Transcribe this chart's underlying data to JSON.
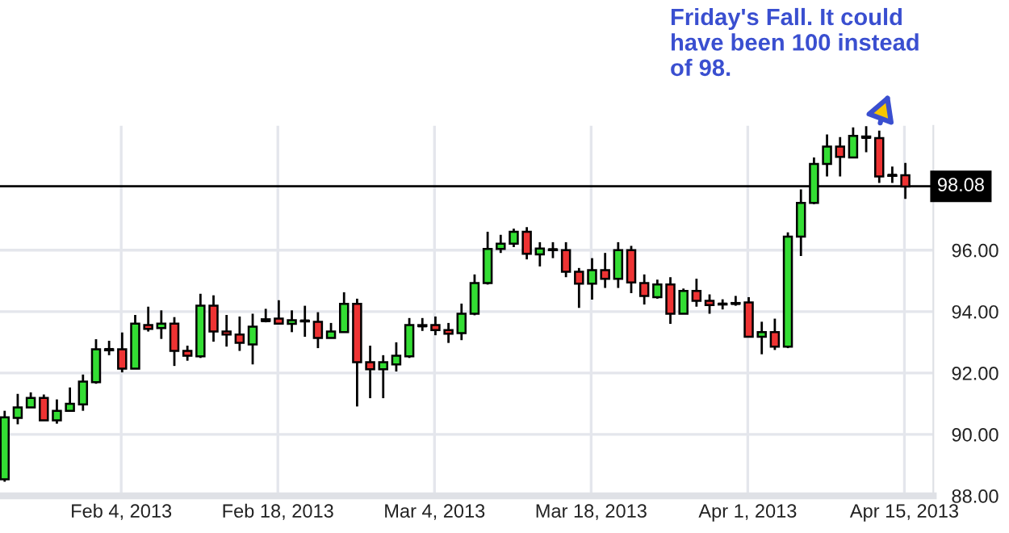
{
  "chart_data": {
    "type": "candlestick",
    "x": [
      "2013-01-24T14:00",
      "2013-01-25T18:00",
      "2013-01-26T22:00",
      "2013-01-28T02:00",
      "2013-01-29T06:00",
      "2013-01-30T10:00",
      "2013-01-31T14:00",
      "2013-02-01T18:00",
      "2013-02-02T22:00",
      "2013-02-04T02:00",
      "2013-02-05T06:00",
      "2013-02-06T10:00",
      "2013-02-07T14:00",
      "2013-02-08T18:00",
      "2013-02-09T22:00",
      "2013-02-11T02:00",
      "2013-02-12T06:00",
      "2013-02-13T10:00",
      "2013-02-14T14:00",
      "2013-02-15T18:00",
      "2013-02-16T22:00",
      "2013-02-18T02:00",
      "2013-02-19T06:00",
      "2013-02-20T10:00",
      "2013-02-21T14:00",
      "2013-02-22T18:00",
      "2013-02-23T22:00",
      "2013-02-25T02:00",
      "2013-02-26T06:00",
      "2013-02-27T10:00",
      "2013-02-28T14:00",
      "2013-03-01T18:00",
      "2013-03-02T22:00",
      "2013-03-04T02:00",
      "2013-03-05T06:00",
      "2013-03-06T10:00",
      "2013-03-07T14:00",
      "2013-03-08T18:00",
      "2013-03-09T22:00",
      "2013-03-11T02:00",
      "2013-03-12T06:00",
      "2013-03-13T10:00",
      "2013-03-14T14:00",
      "2013-03-15T18:00",
      "2013-03-16T22:00",
      "2013-03-18T02:00",
      "2013-03-19T06:00",
      "2013-03-20T10:00",
      "2013-03-21T14:00",
      "2013-03-22T18:00",
      "2013-03-23T22:00",
      "2013-03-25T02:00",
      "2013-03-26T06:00",
      "2013-03-27T10:00",
      "2013-03-28T14:00",
      "2013-03-29T18:00",
      "2013-03-30T22:00",
      "2013-04-01T02:00",
      "2013-04-02T06:00",
      "2013-04-03T10:00",
      "2013-04-04T14:00",
      "2013-04-05T18:00",
      "2013-04-06T22:00",
      "2013-04-08T02:00",
      "2013-04-09T06:00",
      "2013-04-10T10:00",
      "2013-04-11T14:00",
      "2013-04-12T18:00",
      "2013-04-13T22:00",
      "2013-04-15T02:00"
    ],
    "ohlc": [
      [
        88.54,
        90.77,
        88.46,
        90.56
      ],
      [
        90.54,
        91.32,
        90.33,
        90.88
      ],
      [
        90.88,
        91.37,
        90.88,
        91.19
      ],
      [
        91.19,
        91.3,
        90.46,
        90.46
      ],
      [
        90.46,
        91.14,
        90.35,
        90.77
      ],
      [
        90.77,
        91.53,
        90.77,
        91.0
      ],
      [
        90.98,
        91.95,
        90.77,
        91.72
      ],
      [
        91.7,
        93.1,
        91.65,
        92.77
      ],
      [
        92.77,
        93.05,
        92.58,
        92.74
      ],
      [
        92.77,
        93.32,
        92.02,
        92.14
      ],
      [
        92.14,
        93.89,
        92.14,
        93.61
      ],
      [
        93.56,
        94.16,
        93.35,
        93.44
      ],
      [
        93.46,
        94.04,
        93.11,
        93.61
      ],
      [
        93.61,
        93.82,
        92.23,
        92.72
      ],
      [
        92.72,
        92.89,
        92.4,
        92.56
      ],
      [
        92.54,
        94.58,
        92.49,
        94.19
      ],
      [
        94.19,
        94.53,
        93.02,
        93.35
      ],
      [
        93.35,
        93.89,
        92.86,
        93.25
      ],
      [
        93.25,
        93.84,
        92.72,
        92.98
      ],
      [
        92.93,
        93.93,
        92.28,
        93.51
      ],
      [
        93.7,
        94.09,
        93.65,
        93.75
      ],
      [
        93.77,
        94.37,
        93.6,
        93.61
      ],
      [
        93.6,
        94.04,
        93.33,
        93.72
      ],
      [
        93.7,
        94.19,
        93.18,
        93.68
      ],
      [
        93.67,
        93.98,
        92.81,
        93.14
      ],
      [
        93.14,
        93.63,
        93.14,
        93.35
      ],
      [
        93.33,
        94.63,
        93.33,
        94.25
      ],
      [
        94.25,
        94.42,
        90.91,
        92.35
      ],
      [
        92.35,
        92.89,
        91.18,
        92.12
      ],
      [
        92.12,
        92.58,
        91.18,
        92.35
      ],
      [
        92.28,
        93.0,
        92.05,
        92.56
      ],
      [
        92.54,
        93.79,
        92.49,
        93.56
      ],
      [
        93.53,
        93.79,
        93.37,
        93.56
      ],
      [
        93.56,
        93.84,
        93.23,
        93.4
      ],
      [
        93.4,
        93.63,
        92.98,
        93.28
      ],
      [
        93.3,
        94.26,
        93.07,
        93.93
      ],
      [
        93.93,
        95.21,
        93.88,
        94.93
      ],
      [
        94.93,
        96.6,
        94.88,
        96.04
      ],
      [
        96.04,
        96.5,
        95.91,
        96.21
      ],
      [
        96.21,
        96.7,
        96.1,
        96.6
      ],
      [
        96.6,
        96.75,
        95.7,
        95.88
      ],
      [
        95.86,
        96.26,
        95.47,
        96.05
      ],
      [
        96.02,
        96.26,
        95.74,
        96.0
      ],
      [
        96.0,
        96.26,
        95.12,
        95.3
      ],
      [
        95.3,
        95.42,
        94.12,
        94.91
      ],
      [
        94.91,
        95.74,
        94.39,
        95.35
      ],
      [
        95.35,
        95.91,
        94.77,
        95.07
      ],
      [
        95.07,
        96.26,
        94.77,
        96.0
      ],
      [
        96.0,
        96.14,
        94.6,
        94.95
      ],
      [
        94.93,
        95.21,
        94.23,
        94.51
      ],
      [
        94.47,
        95.04,
        94.42,
        94.88
      ],
      [
        94.88,
        95.12,
        93.6,
        93.93
      ],
      [
        93.93,
        94.75,
        93.93,
        94.67
      ],
      [
        94.67,
        95.07,
        94.16,
        94.35
      ],
      [
        94.35,
        94.56,
        93.93,
        94.21
      ],
      [
        94.25,
        94.4,
        94.07,
        94.23
      ],
      [
        94.26,
        94.51,
        94.19,
        94.28
      ],
      [
        94.3,
        94.47,
        93.16,
        93.18
      ],
      [
        93.18,
        93.67,
        92.61,
        93.33
      ],
      [
        93.33,
        93.77,
        92.75,
        92.86
      ],
      [
        92.86,
        96.58,
        92.81,
        96.44
      ],
      [
        96.44,
        97.98,
        95.81,
        97.54
      ],
      [
        97.54,
        99.02,
        97.5,
        98.81
      ],
      [
        98.81,
        99.77,
        98.4,
        99.37
      ],
      [
        99.37,
        99.68,
        98.4,
        99.04
      ],
      [
        99.02,
        100.0,
        99.02,
        99.72
      ],
      [
        99.67,
        100.04,
        99.19,
        99.7
      ],
      [
        99.65,
        99.89,
        98.19,
        98.4
      ],
      [
        98.44,
        98.72,
        98.19,
        98.42
      ],
      [
        98.44,
        98.84,
        97.67,
        98.07
      ]
    ],
    "colors": [
      "#33dd33",
      "#33dd33",
      "#33dd33",
      "#ee3333",
      "#33dd33",
      "#33dd33",
      "#33dd33",
      "#33dd33",
      "#000000",
      "#ee3333",
      "#33dd33",
      "#ee3333",
      "#33dd33",
      "#ee3333",
      "#ee3333",
      "#33dd33",
      "#ee3333",
      "#ee3333",
      "#ee3333",
      "#33dd33",
      "#000000",
      "#ee3333",
      "#33dd33",
      "#000000",
      "#ee3333",
      "#33dd33",
      "#33dd33",
      "#ee3333",
      "#ee3333",
      "#33dd33",
      "#33dd33",
      "#33dd33",
      "#000000",
      "#ee3333",
      "#ee3333",
      "#33dd33",
      "#33dd33",
      "#33dd33",
      "#33dd33",
      "#33dd33",
      "#ee3333",
      "#33dd33",
      "#000000",
      "#ee3333",
      "#ee3333",
      "#33dd33",
      "#ee3333",
      "#33dd33",
      "#ee3333",
      "#ee3333",
      "#33dd33",
      "#ee3333",
      "#33dd33",
      "#ee3333",
      "#ee3333",
      "#000000",
      "#000000",
      "#ee3333",
      "#33dd33",
      "#ee3333",
      "#33dd33",
      "#33dd33",
      "#33dd33",
      "#33dd33",
      "#ee3333",
      "#33dd33",
      "#000000",
      "#ee3333",
      "#000000",
      "#ee3333"
    ],
    "xlim": [
      "2013-01-24T04:00",
      "2013-04-17T14:00"
    ],
    "xticks": [
      {
        "value": "2013-02-04",
        "label": "Feb 4, 2013"
      },
      {
        "value": "2013-02-18",
        "label": "Feb 18, 2013"
      },
      {
        "value": "2013-03-04",
        "label": "Mar 4, 2013"
      },
      {
        "value": "2013-03-18",
        "label": "Mar 18, 2013"
      },
      {
        "value": "2013-04-01",
        "label": "Apr 1, 2013"
      },
      {
        "value": "2013-04-15",
        "label": "Apr 15, 2013"
      }
    ],
    "ylim": [
      88,
      100.05
    ],
    "yticks": [
      {
        "value": 88,
        "label": "88.00"
      },
      {
        "value": 90,
        "label": "90.00"
      },
      {
        "value": 92,
        "label": "92.00"
      },
      {
        "value": 94,
        "label": "94.00"
      },
      {
        "value": 96,
        "label": "96.00"
      }
    ],
    "grid": true,
    "ref_lines": [
      {
        "axis": "y",
        "value": 98.08,
        "label": "98.08",
        "color": "#000000"
      }
    ],
    "annotations": [
      {
        "text": "Friday's Fall. It could\nhave been 100 instead\nof 98.",
        "x": "2013-04-12T18:00",
        "y": 100.0
      }
    ]
  }
}
